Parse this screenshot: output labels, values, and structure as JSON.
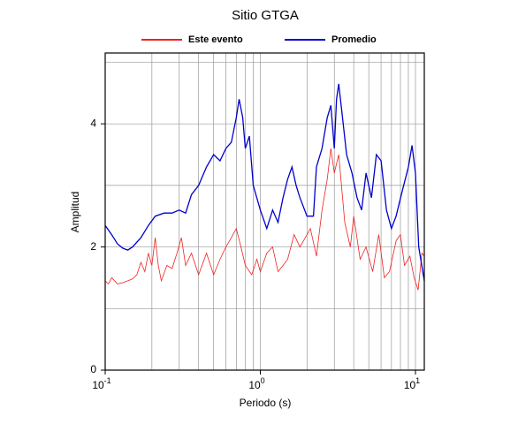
{
  "chart_data": {
    "type": "line",
    "title": "Sitio GTGA",
    "xlabel": "Periodo (s)",
    "ylabel": "Amplitud",
    "xscale": "log",
    "xlim": [
      0.1,
      11.4
    ],
    "ylim": [
      0,
      5.15
    ],
    "grid": true,
    "xticks": [
      {
        "value": 0.1,
        "label": "10",
        "exponent": "-1"
      },
      {
        "value": 1,
        "label": "10",
        "exponent": "0"
      },
      {
        "value": 10,
        "label": "10",
        "exponent": "1"
      }
    ],
    "x_minor_ticks": [
      0.2,
      0.3,
      0.4,
      0.5,
      0.6,
      0.7,
      0.8,
      0.9,
      2,
      3,
      4,
      5,
      6,
      7,
      8,
      9
    ],
    "yticks": [
      0,
      2,
      4
    ],
    "y_minor_ticks": [
      1,
      3,
      5
    ],
    "series": [
      {
        "name": "Este evento",
        "color": "#ee2222",
        "x": [
          0.1,
          0.105,
          0.11,
          0.12,
          0.13,
          0.14,
          0.15,
          0.16,
          0.17,
          0.18,
          0.19,
          0.2,
          0.21,
          0.22,
          0.23,
          0.25,
          0.27,
          0.29,
          0.31,
          0.33,
          0.36,
          0.4,
          0.45,
          0.5,
          0.55,
          0.6,
          0.65,
          0.7,
          0.75,
          0.8,
          0.88,
          0.95,
          1.0,
          1.1,
          1.2,
          1.3,
          1.4,
          1.5,
          1.65,
          1.8,
          1.9,
          2.1,
          2.3,
          2.5,
          2.7,
          2.85,
          3.0,
          3.2,
          3.5,
          3.8,
          4.0,
          4.4,
          4.8,
          5.3,
          5.8,
          6.3,
          6.8,
          7.5,
          8.0,
          8.5,
          9.2,
          9.8,
          10.4,
          11.0,
          11.4
        ],
        "values": [
          1.45,
          1.4,
          1.5,
          1.4,
          1.42,
          1.45,
          1.48,
          1.55,
          1.75,
          1.6,
          1.9,
          1.7,
          2.15,
          1.7,
          1.45,
          1.7,
          1.65,
          1.9,
          2.15,
          1.7,
          1.9,
          1.55,
          1.9,
          1.55,
          1.8,
          2.0,
          2.15,
          2.3,
          2.0,
          1.7,
          1.55,
          1.8,
          1.6,
          1.9,
          2.0,
          1.6,
          1.7,
          1.8,
          2.2,
          2.0,
          2.1,
          2.3,
          1.85,
          2.6,
          3.1,
          3.6,
          3.2,
          3.5,
          2.4,
          2.0,
          2.5,
          1.8,
          2.0,
          1.6,
          2.2,
          1.5,
          1.6,
          2.1,
          2.2,
          1.7,
          1.85,
          1.5,
          1.3,
          1.9,
          1.85
        ]
      },
      {
        "name": "Promedio",
        "color": "#0000cc",
        "x": [
          0.1,
          0.11,
          0.12,
          0.13,
          0.14,
          0.15,
          0.17,
          0.19,
          0.21,
          0.24,
          0.27,
          0.3,
          0.33,
          0.36,
          0.4,
          0.45,
          0.5,
          0.55,
          0.6,
          0.65,
          0.7,
          0.73,
          0.77,
          0.8,
          0.85,
          0.9,
          1.0,
          1.1,
          1.2,
          1.3,
          1.4,
          1.5,
          1.6,
          1.7,
          1.8,
          2.0,
          2.2,
          2.3,
          2.5,
          2.7,
          2.85,
          3.0,
          3.1,
          3.2,
          3.35,
          3.6,
          3.9,
          4.2,
          4.5,
          4.8,
          5.2,
          5.6,
          6.0,
          6.5,
          7.0,
          7.5,
          8.2,
          9.0,
          9.5,
          10.0,
          10.5,
          11.4
        ],
        "values": [
          2.35,
          2.2,
          2.05,
          1.98,
          1.95,
          2.0,
          2.15,
          2.35,
          2.5,
          2.55,
          2.55,
          2.6,
          2.55,
          2.85,
          3.0,
          3.3,
          3.5,
          3.4,
          3.6,
          3.7,
          4.1,
          4.4,
          4.1,
          3.6,
          3.8,
          3.0,
          2.6,
          2.3,
          2.6,
          2.4,
          2.8,
          3.1,
          3.3,
          3.0,
          2.8,
          2.5,
          2.5,
          3.3,
          3.6,
          4.1,
          4.3,
          3.6,
          4.4,
          4.65,
          4.2,
          3.5,
          3.2,
          2.8,
          2.6,
          3.2,
          2.8,
          3.5,
          3.4,
          2.6,
          2.3,
          2.5,
          2.9,
          3.3,
          3.65,
          3.2,
          2.0,
          1.45
        ]
      }
    ]
  }
}
